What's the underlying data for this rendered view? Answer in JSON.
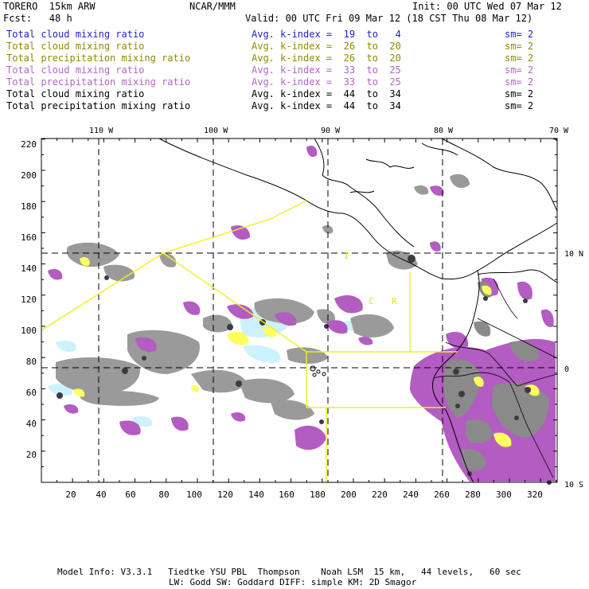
{
  "header": {
    "model": "TORERO  15km ARW",
    "org": "NCAR/MMM",
    "init": "Init: 00 UTC Wed 07 Mar 12",
    "fcst": "Fcst:   48 h",
    "valid": "Valid: 00 UTC Fri 09 Mar 12 (18 CST Thu 08 Mar 12)"
  },
  "legend": [
    {
      "field": "Total cloud mixing ratio",
      "kindex": "Avg. k-index =  19  to   4",
      "sm": "sm= 2",
      "color": "#1f1fd0"
    },
    {
      "field": "Total cloud mixing ratio",
      "kindex": "Avg. k-index =  26  to  20",
      "sm": "sm= 2",
      "color": "#8c8c00"
    },
    {
      "field": "Total precipitation mixing ratio",
      "kindex": "Avg. k-index =  26  to  20",
      "sm": "sm= 2",
      "color": "#8c8c00"
    },
    {
      "field": "Total cloud mixing ratio",
      "kindex": "Avg. k-index =  33  to  25",
      "sm": "sm= 2",
      "color": "#b266c8"
    },
    {
      "field": "Total precipitation mixing ratio",
      "kindex": "Avg. k-index =  33  to  25",
      "sm": "sm= 2",
      "color": "#b266c8"
    },
    {
      "field": "Total cloud mixing ratio",
      "kindex": "Avg. k-index =  44  to  34",
      "sm": "sm= 2",
      "color": "#000000"
    },
    {
      "field": "Total precipitation mixing ratio",
      "kindex": "Avg. k-index =  44  to  34",
      "sm": "sm= 2",
      "color": "#000000"
    }
  ],
  "map": {
    "top_lon_labels": [
      "110 W",
      "100 W",
      "90 W",
      "80 W",
      "70 W"
    ],
    "right_lat_labels": [
      "10 N",
      "0",
      "10 S"
    ],
    "left_grid_labels": [
      "220",
      "200",
      "180",
      "160",
      "140",
      "120",
      "100",
      "80",
      "60",
      "40",
      "20"
    ],
    "bottom_grid_labels": [
      "20",
      "40",
      "60",
      "80",
      "100",
      "120",
      "140",
      "160",
      "180",
      "200",
      "220",
      "240",
      "260",
      "280",
      "300",
      "320"
    ],
    "region_labels": [
      "I",
      "C",
      "R"
    ],
    "colors": {
      "gray": "#9a9a9a",
      "dark": "#3c3c3c",
      "purple": "#b35cc2",
      "yellow": "#ffff60",
      "cyan": "#ccf2ff",
      "boundary": "#f0f020"
    }
  },
  "footer": {
    "line1": "Model Info: V3.3.1   Tiedtke YSU PBL  Thompson    Noah LSM  15 km,   44 levels,   60 sec",
    "line2": "LW: Godd SW: Goddard DIFF: simple KM: 2D Smagor"
  }
}
